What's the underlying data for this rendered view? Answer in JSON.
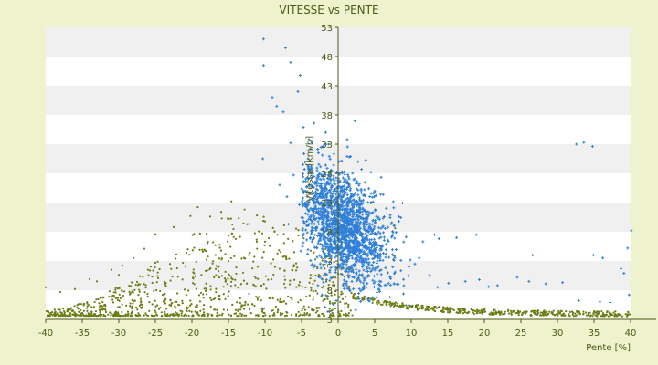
{
  "chart_data": {
    "type": "scatter",
    "title": "VITESSE vs PENTE",
    "xlabel": "Pente [%]",
    "ylabel": "Vitesse [km/h]",
    "xlim": [
      -40,
      40
    ],
    "ylim": [
      3,
      53
    ],
    "x_ticks": [
      -40,
      -35,
      -30,
      -25,
      -20,
      -15,
      -10,
      -5,
      0,
      5,
      10,
      15,
      20,
      25,
      30,
      35,
      40
    ],
    "y_ticks": [
      3,
      8,
      13,
      18,
      23,
      28,
      33,
      38,
      43,
      48,
      53
    ],
    "grid": "horizontal alternating bands",
    "legend": "none",
    "series": [
      {
        "color": "#2f7fd8",
        "marker": "plus",
        "points": [
          [
            -10.2,
            51
          ],
          [
            -7.2,
            49.5
          ],
          [
            -10.2,
            46.5
          ],
          [
            -6.5,
            47
          ],
          [
            -5.2,
            44.8
          ],
          [
            -5.5,
            42
          ],
          [
            -9,
            41
          ],
          [
            -8.4,
            39.5
          ],
          [
            -7.5,
            38.5
          ],
          [
            -3.3,
            36.6
          ],
          [
            2.3,
            37
          ],
          [
            -1.7,
            35
          ],
          [
            -4,
            33.8
          ],
          [
            -1.3,
            33
          ],
          [
            -2.7,
            31.5
          ],
          [
            -10.3,
            30.5
          ],
          [
            -4.6,
            28.7
          ],
          [
            -6.1,
            27.7
          ],
          [
            -2.9,
            27.2
          ],
          [
            5,
            25
          ],
          [
            6.6,
            22
          ],
          [
            8.3,
            20.6
          ],
          [
            9.3,
            17.1
          ],
          [
            11.6,
            16.3
          ],
          [
            13.8,
            16.8
          ],
          [
            13.2,
            17.5
          ],
          [
            16.2,
            17
          ],
          [
            18.9,
            17.5
          ],
          [
            9.7,
            12
          ],
          [
            10.5,
            12.5
          ],
          [
            11.1,
            13.5
          ],
          [
            12.5,
            10.5
          ],
          [
            13.6,
            8.5
          ],
          [
            15.1,
            9.2
          ],
          [
            17.4,
            9.5
          ],
          [
            19.3,
            9.8
          ],
          [
            20.6,
            8.6
          ],
          [
            21.8,
            8.8
          ],
          [
            24.5,
            10.2
          ],
          [
            26.1,
            9.5
          ],
          [
            28.4,
            9.1
          ],
          [
            30.7,
            9.3
          ],
          [
            32.6,
            33
          ],
          [
            33.6,
            33.3
          ],
          [
            34.8,
            32.6
          ],
          [
            26.6,
            14
          ],
          [
            34.9,
            14
          ],
          [
            36.2,
            13.5
          ],
          [
            39.6,
            15.2
          ],
          [
            40.1,
            18.2
          ],
          [
            38.7,
            11.7
          ],
          [
            39.1,
            10.9
          ],
          [
            32.9,
            6.2
          ],
          [
            35.8,
            6
          ],
          [
            37.2,
            5.9
          ],
          [
            39.8,
            7.2
          ],
          [
            -6.5,
            33.2
          ],
          [
            -4.1,
            30.5
          ],
          [
            -8,
            26
          ],
          [
            -7,
            24
          ],
          [
            -5.3,
            22.6
          ],
          [
            -6.8,
            19.3
          ],
          [
            -4.3,
            19.8
          ],
          [
            -3.8,
            17
          ],
          [
            -5.1,
            14.7
          ],
          [
            -3.2,
            12.1
          ],
          [
            -2.5,
            10.2
          ],
          [
            -2.2,
            7.2
          ],
          [
            -1.8,
            5.1
          ],
          [
            -1.2,
            4.3
          ],
          [
            2.4,
            4.6
          ],
          [
            4.2,
            6.2
          ],
          [
            5.6,
            8.1
          ],
          [
            6.9,
            9.2
          ],
          [
            7.8,
            11.1
          ],
          [
            8.6,
            13.1
          ],
          [
            3.1,
            9.4
          ],
          [
            4.6,
            12.3
          ],
          [
            2.2,
            14.6
          ],
          [
            3.6,
            16.9
          ],
          [
            1.8,
            18.2
          ],
          [
            0.4,
            25.1
          ],
          [
            0.9,
            27.8
          ],
          [
            -0.6,
            29.4
          ],
          [
            1.7,
            30.9
          ],
          [
            -2.1,
            32.6
          ],
          [
            -0.3,
            23.8
          ],
          [
            2.9,
            22.1
          ],
          [
            -1.4,
            21.5
          ],
          [
            1.2,
            20.2
          ]
        ],
        "cluster": {
          "seed": 11,
          "count": 1800,
          "x_center": 0.6,
          "x_spread": 3.0,
          "y_center": 19.5,
          "y_spread": 4.5,
          "skew": -0.7,
          "x_range": [
            -5,
            11
          ],
          "y_range": [
            5,
            36
          ]
        }
      },
      {
        "color": "#6b7d14",
        "marker": "dot",
        "points": [
          [
            -40,
            8.5
          ],
          [
            -38,
            7.7
          ],
          [
            -36,
            8.2
          ],
          [
            -33,
            9.5
          ],
          [
            -31,
            11.5
          ],
          [
            -29.5,
            12.2
          ],
          [
            -28,
            13.5
          ],
          [
            -26.5,
            15.1
          ],
          [
            -25,
            17.6
          ],
          [
            -22.5,
            18.8
          ],
          [
            -20.2,
            20.7
          ],
          [
            -19.2,
            22.2
          ],
          [
            -17.5,
            20.6
          ],
          [
            -16,
            21.4
          ],
          [
            -14.6,
            23.2
          ],
          [
            -13.6,
            20.3
          ],
          [
            -12.8,
            21.8
          ],
          [
            -11.1,
            20.8
          ],
          [
            -10,
            19.8
          ],
          [
            -8.3,
            17.5
          ],
          [
            -7.1,
            13.5
          ],
          [
            -6,
            12.2
          ],
          [
            -4.9,
            8.6
          ],
          [
            -3.9,
            7.1
          ],
          [
            -3.4,
            7.8
          ],
          [
            7.2,
            19.3
          ],
          [
            7.8,
            18.6
          ],
          [
            0.2,
            6.8
          ],
          [
            0.9,
            5.7
          ],
          [
            -13.2,
            13.4
          ],
          [
            -12.2,
            14
          ],
          [
            -11.1,
            15.1
          ],
          [
            -10,
            16.3
          ],
          [
            -9.5,
            16.9
          ],
          [
            -8.7,
            18
          ],
          [
            -7.4,
            19.1
          ],
          [
            -21.9,
            10.3
          ],
          [
            -19.7,
            10.9
          ],
          [
            -17.9,
            11.4
          ],
          [
            -16.5,
            12.1
          ],
          [
            -15,
            13
          ],
          [
            -14.2,
            13.8
          ],
          [
            -27,
            6.5
          ],
          [
            -24,
            7.2
          ],
          [
            -21,
            8.1
          ],
          [
            -18,
            9.1
          ],
          [
            -15.5,
            10
          ],
          [
            -13,
            11
          ],
          [
            -11,
            12
          ],
          [
            -9.2,
            12.6
          ],
          [
            -34,
            9.9
          ],
          [
            -30,
            10.6
          ],
          [
            -26,
            11.5
          ],
          [
            -23,
            12.5
          ],
          [
            -18.5,
            14.6
          ],
          [
            -16.8,
            15.7
          ],
          [
            -15.1,
            16.3
          ]
        ],
        "cluster": {
          "seed": 29,
          "count": 900,
          "x_range": [
            -40,
            2
          ],
          "y_range": [
            3.6,
            22
          ]
        },
        "tail": {
          "seed": 47,
          "count": 420,
          "x_range": [
            2,
            40
          ]
        }
      }
    ]
  }
}
